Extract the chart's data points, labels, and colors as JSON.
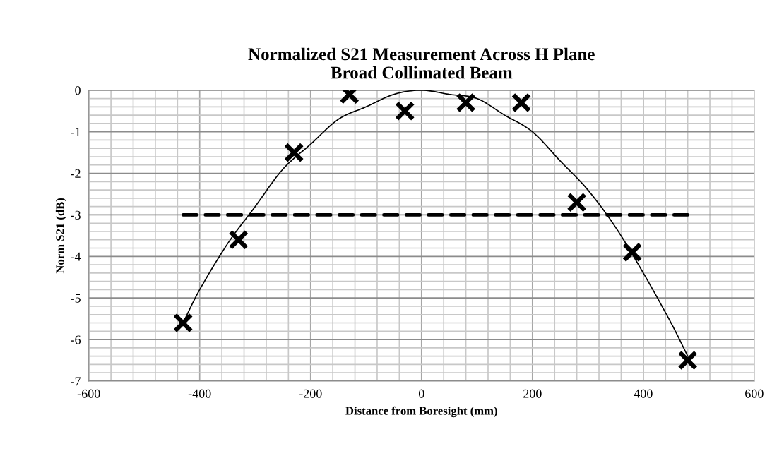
{
  "chart_data": {
    "type": "scatter",
    "title": "Normalized S21 Measurement Across H Plane\nBroad Collimated Beam",
    "xlabel": "Distance from Boresight (mm)",
    "ylabel": "Norm S21 (dB)",
    "xlim": [
      -600,
      600
    ],
    "xticks": [
      -600,
      -400,
      -200,
      0,
      200,
      400,
      600
    ],
    "ylim": [
      -7,
      0
    ],
    "yticks": [
      -7,
      -6,
      -5,
      -4,
      -3,
      -2,
      -1,
      0
    ],
    "grid": true,
    "legend": false,
    "series": [
      {
        "type": "line",
        "color": "#000000",
        "marker": "none",
        "line_style": "solid",
        "x": [
          -430,
          -400,
          -350,
          -300,
          -250,
          -200,
          -150,
          -100,
          -50,
          0,
          50,
          100,
          150,
          200,
          250,
          300,
          350,
          400,
          450,
          480
        ],
        "values": [
          -5.6,
          -4.8,
          -3.7,
          -2.8,
          -1.9,
          -1.3,
          -0.7,
          -0.4,
          -0.1,
          0.0,
          -0.1,
          -0.2,
          -0.6,
          -1.0,
          -1.7,
          -2.4,
          -3.3,
          -4.4,
          -5.6,
          -6.4
        ]
      },
      {
        "type": "line",
        "color": "#000000",
        "marker": "none",
        "line_style": "dashed",
        "x": [
          -430,
          480
        ],
        "values": [
          -3,
          -3
        ]
      },
      {
        "color": "#000000",
        "marker": "cross",
        "x": [
          -430,
          -330,
          -230,
          -130,
          -30,
          80,
          180,
          280,
          380,
          480
        ],
        "values": [
          -5.6,
          -3.6,
          -1.5,
          -0.1,
          -0.5,
          -0.3,
          -0.3,
          -2.7,
          -3.9,
          -6.5
        ]
      }
    ]
  }
}
